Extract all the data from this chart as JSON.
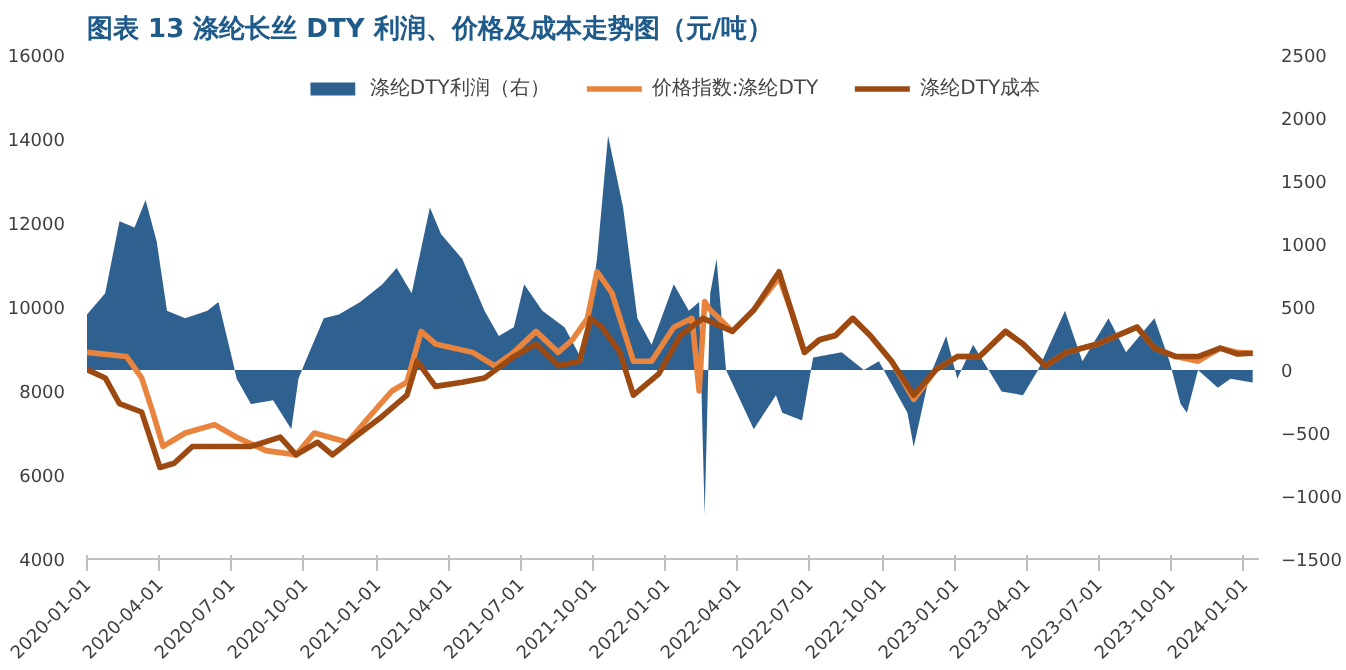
{
  "chart_data": {
    "type": "line",
    "title": "图表 13 涤纶长丝 DTY 利润、价格及成本走势图（元/吨）",
    "xlim": [
      "2020-01-01",
      "2024-01-20"
    ],
    "xticks": [
      "2020-01-01",
      "2020-04-01",
      "2020-07-01",
      "2020-10-01",
      "2021-01-01",
      "2021-04-01",
      "2021-07-01",
      "2021-10-01",
      "2022-01-01",
      "2022-04-01",
      "2022-07-01",
      "2022-10-01",
      "2023-01-01",
      "2023-04-01",
      "2023-07-01",
      "2023-10-01",
      "2024-01-01"
    ],
    "ylim": [
      4000,
      16000
    ],
    "yticks": [
      4000,
      6000,
      8000,
      10000,
      12000,
      14000,
      16000
    ],
    "y2lim": [
      -1500,
      2500
    ],
    "y2ticks": [
      -1500,
      -1000,
      -500,
      0,
      500,
      1000,
      1500,
      2000,
      2500
    ],
    "grid": false,
    "legend": "top",
    "line_style": "solid",
    "marker": "none",
    "series": [
      {
        "name": "涤纶DTY利润（右）",
        "type": "area",
        "axis": "y2",
        "color": "#2e6090",
        "x": [
          "2020-01-01",
          "2020-01-24",
          "2020-02-11",
          "2020-03-01",
          "2020-03-15",
          "2020-03-29",
          "2020-04-11",
          "2020-05-04",
          "2020-06-01",
          "2020-06-15",
          "2020-07-03",
          "2020-07-08",
          "2020-07-26",
          "2020-08-23",
          "2020-09-15",
          "2020-09-24",
          "2020-10-03",
          "2020-10-26",
          "2020-11-14",
          "2020-12-11",
          "2021-01-08",
          "2021-01-26",
          "2021-02-14",
          "2021-03-09",
          "2021-03-23",
          "2021-04-19",
          "2021-05-17",
          "2021-06-04",
          "2021-06-23",
          "2021-07-06",
          "2021-07-29",
          "2021-08-26",
          "2021-09-18",
          "2021-10-06",
          "2021-10-20",
          "2021-11-08",
          "2021-11-26",
          "2021-12-14",
          "2022-01-11",
          "2022-01-30",
          "2022-02-12",
          "2022-02-19",
          "2022-02-26",
          "2022-03-06",
          "2022-03-18",
          "2022-04-22",
          "2022-05-20",
          "2022-05-28",
          "2022-06-22",
          "2022-07-06",
          "2022-08-11",
          "2022-09-08",
          "2022-09-27",
          "2022-11-02",
          "2022-11-10",
          "2022-11-29",
          "2022-12-21",
          "2023-01-04",
          "2023-01-24",
          "2023-03-01",
          "2023-03-28",
          "2023-04-16",
          "2023-05-20",
          "2023-06-11",
          "2023-07-14",
          "2023-08-05",
          "2023-09-10",
          "2023-09-29",
          "2023-10-13",
          "2023-10-21",
          "2023-11-04",
          "2023-11-29",
          "2023-12-15",
          "2024-01-12"
        ],
        "values": [
          440,
          610,
          1180,
          1130,
          1350,
          1020,
          470,
          410,
          470,
          540,
          70,
          -70,
          -270,
          -240,
          -470,
          -70,
          70,
          410,
          440,
          540,
          680,
          810,
          610,
          1290,
          1080,
          880,
          470,
          270,
          340,
          680,
          470,
          340,
          70,
          880,
          1860,
          1290,
          410,
          200,
          680,
          470,
          540,
          -1150,
          610,
          880,
          0,
          -470,
          -200,
          -340,
          -400,
          100,
          140,
          0,
          70,
          -340,
          -610,
          -70,
          270,
          -70,
          200,
          -170,
          -200,
          0,
          470,
          70,
          410,
          140,
          410,
          70,
          -270,
          -340,
          0,
          -140,
          -70,
          -100
        ]
      },
      {
        "name": "价格指数:涤纶DTY",
        "color": "#e8843e",
        "x": [
          "2020-01-01",
          "2020-02-20",
          "2020-03-10",
          "2020-03-24",
          "2020-04-06",
          "2020-05-04",
          "2020-06-10",
          "2020-07-08",
          "2020-08-14",
          "2020-09-21",
          "2020-10-14",
          "2020-11-25",
          "2020-12-23",
          "2021-01-20",
          "2021-02-08",
          "2021-02-26",
          "2021-03-16",
          "2021-05-02",
          "2021-05-30",
          "2021-06-23",
          "2021-07-21",
          "2021-08-18",
          "2021-09-05",
          "2021-09-24",
          "2021-10-06",
          "2021-10-25",
          "2021-11-21",
          "2021-12-14",
          "2022-01-11",
          "2022-02-03",
          "2022-02-12",
          "2022-02-19",
          "2022-02-26",
          "2022-03-26",
          "2022-04-22",
          "2022-05-24",
          "2022-06-08",
          "2022-06-25",
          "2022-07-14",
          "2022-08-03",
          "2022-08-25",
          "2022-09-16",
          "2022-10-13",
          "2022-11-10",
          "2022-12-08",
          "2023-01-04",
          "2023-02-01",
          "2023-03-06",
          "2023-03-28",
          "2023-04-25",
          "2023-05-22",
          "2023-06-30",
          "2023-08-19",
          "2023-09-10",
          "2023-10-07",
          "2023-11-04",
          "2023-12-02",
          "2023-12-24",
          "2024-01-12"
        ],
        "values": [
          8920,
          8820,
          8310,
          7500,
          6680,
          7000,
          7200,
          6900,
          6580,
          6480,
          7000,
          6780,
          7400,
          8000,
          8210,
          9420,
          9120,
          8920,
          8600,
          8920,
          9420,
          8920,
          9220,
          9730,
          10840,
          10330,
          8710,
          8710,
          9520,
          9730,
          8000,
          10130,
          9930,
          9420,
          9930,
          10700,
          9930,
          8920,
          9220,
          9320,
          9730,
          9320,
          8710,
          7800,
          8510,
          8820,
          8820,
          9420,
          9120,
          8600,
          8920,
          9120,
          9520,
          9020,
          8820,
          8710,
          9020,
          8920,
          8900
        ]
      },
      {
        "name": "涤纶DTY成本",
        "color": "#9c4a12",
        "x": [
          "2020-01-01",
          "2020-01-24",
          "2020-02-11",
          "2020-03-10",
          "2020-04-02",
          "2020-04-20",
          "2020-05-13",
          "2020-06-20",
          "2020-07-26",
          "2020-09-01",
          "2020-09-21",
          "2020-10-18",
          "2020-11-06",
          "2020-12-04",
          "2021-01-08",
          "2021-02-08",
          "2021-02-21",
          "2021-03-16",
          "2021-04-19",
          "2021-05-17",
          "2021-06-23",
          "2021-07-21",
          "2021-08-18",
          "2021-09-14",
          "2021-09-28",
          "2021-10-12",
          "2021-11-04",
          "2021-11-21",
          "2021-12-23",
          "2022-01-19",
          "2022-02-17",
          "2022-03-14",
          "2022-03-26",
          "2022-04-22",
          "2022-05-24",
          "2022-06-08",
          "2022-06-25",
          "2022-07-14",
          "2022-08-03",
          "2022-08-25",
          "2022-09-16",
          "2022-10-13",
          "2022-11-10",
          "2022-12-08",
          "2023-01-04",
          "2023-02-01",
          "2023-03-06",
          "2023-03-28",
          "2023-04-25",
          "2023-05-22",
          "2023-06-30",
          "2023-08-19",
          "2023-09-10",
          "2023-10-07",
          "2023-11-04",
          "2023-12-02",
          "2023-12-24",
          "2024-01-12"
        ],
        "values": [
          8510,
          8310,
          7700,
          7500,
          6180,
          6280,
          6680,
          6680,
          6680,
          6900,
          6480,
          6780,
          6480,
          6900,
          7400,
          7900,
          8710,
          8110,
          8210,
          8310,
          8820,
          9120,
          8600,
          8710,
          9730,
          9520,
          8920,
          7900,
          8410,
          9320,
          9730,
          9520,
          9420,
          9930,
          10840,
          9930,
          8920,
          9220,
          9320,
          9730,
          9320,
          8710,
          7900,
          8510,
          8820,
          8820,
          9420,
          9120,
          8600,
          8920,
          9120,
          9520,
          9020,
          8820,
          8820,
          9020,
          8880,
          8900
        ]
      }
    ]
  }
}
